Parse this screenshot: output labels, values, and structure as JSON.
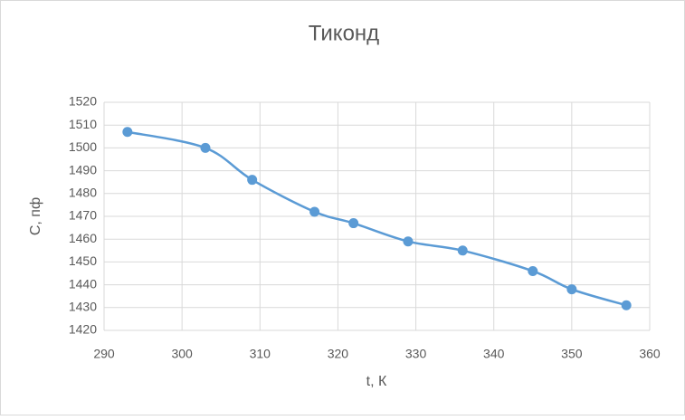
{
  "chart_data": {
    "type": "scatter",
    "title": "Тиконд",
    "x_label": "t, К",
    "y_label": "С, пф",
    "x": [
      293,
      303,
      309,
      317,
      322,
      329,
      336,
      345,
      350,
      357
    ],
    "values": [
      1507,
      1500,
      1486,
      1472,
      1467,
      1459,
      1455,
      1446,
      1438,
      1431
    ],
    "color": "#5b9bd5",
    "smooth": true,
    "grid": true,
    "xlim": [
      290,
      360
    ],
    "xticks": [
      290,
      300,
      310,
      320,
      330,
      340,
      350,
      360
    ],
    "ylim": [
      1420,
      1520
    ],
    "yticks": [
      1420,
      1430,
      1440,
      1450,
      1460,
      1470,
      1480,
      1490,
      1500,
      1510,
      1520
    ]
  }
}
